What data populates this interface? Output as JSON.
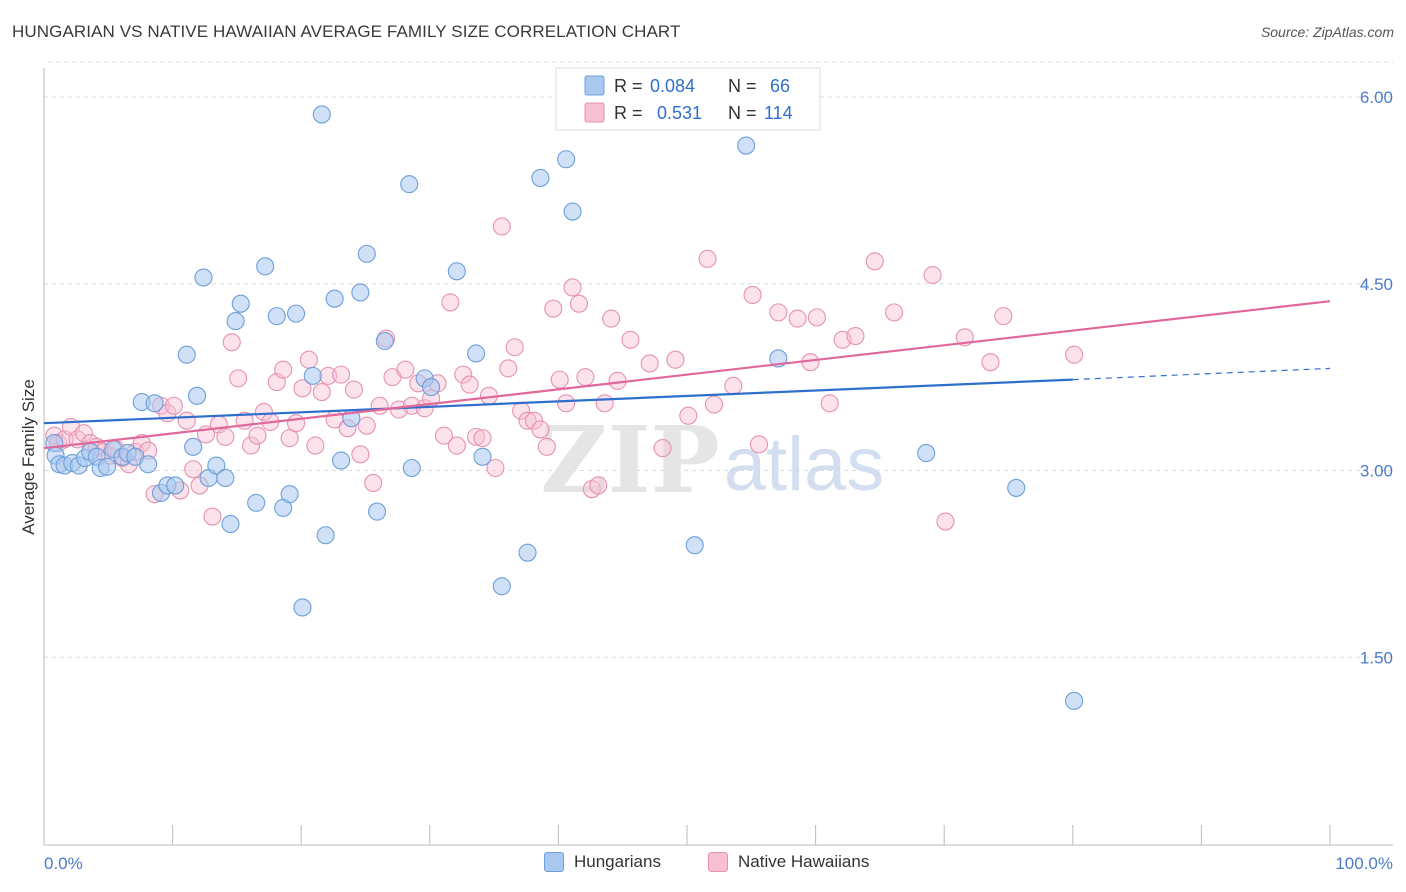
{
  "header": {
    "title": "HUNGARIAN VS NATIVE HAWAIIAN AVERAGE FAMILY SIZE CORRELATION CHART",
    "source": "Source: ZipAtlas.com"
  },
  "watermark": {
    "zip": "ZIP",
    "atlas": "atlas"
  },
  "colors": {
    "blue_fill": "#a9c8f0",
    "blue_stroke": "#6d9fd8",
    "blue_line": "#2f6fcc",
    "pink_fill": "#f6bfd3",
    "pink_stroke": "#e692b2",
    "pink_line": "#e0689a",
    "tick_label": "#4a7cc9",
    "grid": "#dcdcdc"
  },
  "legend_top": {
    "rows": [
      {
        "r_label": "R =",
        "r_value": "0.084",
        "n_label": "N =",
        "n_value": "66"
      },
      {
        "r_label": "R =",
        "r_value": "0.531",
        "n_label": "N =",
        "n_value": "114"
      }
    ]
  },
  "legend_bottom": {
    "items": [
      "Hungarians",
      "Native Hawaiians"
    ]
  },
  "chart_data": {
    "type": "scatter",
    "title": "HUNGARIAN VS NATIVE HAWAIIAN AVERAGE FAMILY SIZE CORRELATION CHART",
    "ylabel": "Average Family Size",
    "xlabel": "",
    "x_tick_labels": [
      "0.0%",
      "100.0%"
    ],
    "y_ticks": [
      1.5,
      3.0,
      4.5,
      6.0
    ],
    "y_tick_labels": [
      "1.50",
      "3.00",
      "4.50",
      "6.00"
    ],
    "xlim": [
      0,
      100
    ],
    "ylim": [
      0.0,
      6.3
    ],
    "grid": true,
    "legend_placement": "top-center",
    "series": [
      {
        "name": "Hungarians",
        "r": 0.084,
        "n": 66,
        "trend": {
          "x": [
            0,
            80
          ],
          "y": [
            3.38,
            3.73
          ],
          "dashed_extension": {
            "x": [
              80,
              100
            ],
            "y": [
              3.73,
              3.82
            ]
          }
        },
        "points": [
          [
            0.8,
            3.22
          ],
          [
            0.9,
            3.12
          ],
          [
            1.2,
            3.05
          ],
          [
            1.6,
            3.04
          ],
          [
            2.2,
            3.06
          ],
          [
            2.7,
            3.04
          ],
          [
            3.2,
            3.1
          ],
          [
            3.6,
            3.15
          ],
          [
            4.1,
            3.11
          ],
          [
            4.4,
            3.02
          ],
          [
            4.9,
            3.03
          ],
          [
            5.4,
            3.17
          ],
          [
            6.1,
            3.11
          ],
          [
            6.5,
            3.14
          ],
          [
            7.1,
            3.11
          ],
          [
            7.6,
            3.55
          ],
          [
            8.1,
            3.05
          ],
          [
            8.6,
            3.54
          ],
          [
            9.1,
            2.82
          ],
          [
            9.6,
            2.88
          ],
          [
            10.2,
            2.88
          ],
          [
            11.1,
            3.93
          ],
          [
            11.6,
            3.19
          ],
          [
            11.9,
            3.6
          ],
          [
            12.4,
            4.55
          ],
          [
            12.8,
            2.94
          ],
          [
            13.4,
            3.04
          ],
          [
            14.1,
            2.94
          ],
          [
            14.5,
            2.57
          ],
          [
            14.9,
            4.2
          ],
          [
            15.3,
            4.34
          ],
          [
            16.5,
            2.74
          ],
          [
            17.2,
            4.64
          ],
          [
            18.1,
            4.24
          ],
          [
            18.6,
            2.7
          ],
          [
            19.1,
            2.81
          ],
          [
            19.6,
            4.26
          ],
          [
            20.1,
            1.9
          ],
          [
            20.9,
            3.76
          ],
          [
            21.6,
            5.86
          ],
          [
            21.9,
            2.48
          ],
          [
            22.6,
            4.38
          ],
          [
            23.1,
            3.08
          ],
          [
            23.9,
            3.42
          ],
          [
            24.6,
            4.43
          ],
          [
            25.1,
            4.74
          ],
          [
            25.9,
            2.67
          ],
          [
            26.5,
            4.04
          ],
          [
            28.4,
            5.3
          ],
          [
            28.6,
            3.02
          ],
          [
            29.6,
            3.74
          ],
          [
            30.1,
            3.67
          ],
          [
            32.1,
            4.6
          ],
          [
            33.6,
            3.94
          ],
          [
            34.1,
            3.11
          ],
          [
            35.6,
            2.07
          ],
          [
            37.6,
            2.34
          ],
          [
            38.6,
            5.35
          ],
          [
            40.6,
            5.5
          ],
          [
            41.1,
            5.08
          ],
          [
            50.6,
            2.4
          ],
          [
            54.6,
            5.61
          ],
          [
            57.1,
            3.9
          ],
          [
            68.6,
            3.14
          ],
          [
            75.6,
            2.86
          ],
          [
            80.1,
            1.15
          ]
        ]
      },
      {
        "name": "Native Hawaiians",
        "r": 0.531,
        "n": 114,
        "trend": {
          "x": [
            0,
            100
          ],
          "y": [
            3.18,
            4.36
          ]
        },
        "points": [
          [
            0.8,
            3.28
          ],
          [
            1.1,
            3.22
          ],
          [
            1.6,
            3.25
          ],
          [
            2.1,
            3.35
          ],
          [
            2.6,
            3.25
          ],
          [
            3.1,
            3.3
          ],
          [
            3.6,
            3.22
          ],
          [
            4.1,
            3.19
          ],
          [
            4.6,
            3.15
          ],
          [
            5.1,
            3.12
          ],
          [
            5.6,
            3.17
          ],
          [
            6.1,
            3.1
          ],
          [
            6.6,
            3.05
          ],
          [
            7.1,
            3.15
          ],
          [
            7.6,
            3.22
          ],
          [
            8.1,
            3.16
          ],
          [
            8.6,
            2.81
          ],
          [
            9.1,
            3.52
          ],
          [
            9.6,
            3.46
          ],
          [
            10.1,
            3.52
          ],
          [
            10.6,
            2.84
          ],
          [
            11.1,
            3.4
          ],
          [
            11.6,
            3.01
          ],
          [
            12.1,
            2.88
          ],
          [
            12.6,
            3.29
          ],
          [
            13.1,
            2.63
          ],
          [
            13.6,
            3.37
          ],
          [
            14.1,
            3.27
          ],
          [
            14.6,
            4.03
          ],
          [
            15.1,
            3.74
          ],
          [
            15.6,
            3.4
          ],
          [
            16.1,
            3.2
          ],
          [
            16.6,
            3.28
          ],
          [
            17.1,
            3.47
          ],
          [
            17.6,
            3.39
          ],
          [
            18.1,
            3.71
          ],
          [
            18.6,
            3.81
          ],
          [
            19.1,
            3.26
          ],
          [
            19.6,
            3.38
          ],
          [
            20.1,
            3.66
          ],
          [
            20.6,
            3.89
          ],
          [
            21.1,
            3.2
          ],
          [
            21.6,
            3.63
          ],
          [
            22.1,
            3.76
          ],
          [
            22.6,
            3.41
          ],
          [
            23.1,
            3.77
          ],
          [
            23.6,
            3.34
          ],
          [
            24.1,
            3.65
          ],
          [
            24.6,
            3.13
          ],
          [
            25.1,
            3.36
          ],
          [
            25.6,
            2.9
          ],
          [
            26.1,
            3.52
          ],
          [
            26.6,
            4.06
          ],
          [
            27.1,
            3.75
          ],
          [
            27.6,
            3.49
          ],
          [
            28.1,
            3.81
          ],
          [
            28.6,
            3.52
          ],
          [
            29.1,
            3.7
          ],
          [
            29.6,
            3.5
          ],
          [
            30.1,
            3.58
          ],
          [
            30.6,
            3.7
          ],
          [
            31.1,
            3.28
          ],
          [
            31.6,
            4.35
          ],
          [
            32.1,
            3.2
          ],
          [
            32.6,
            3.77
          ],
          [
            33.1,
            3.69
          ],
          [
            33.6,
            3.27
          ],
          [
            34.1,
            3.26
          ],
          [
            34.6,
            3.6
          ],
          [
            35.1,
            3.02
          ],
          [
            35.6,
            4.96
          ],
          [
            36.1,
            3.82
          ],
          [
            36.6,
            3.99
          ],
          [
            37.1,
            3.48
          ],
          [
            37.6,
            3.4
          ],
          [
            38.1,
            3.4
          ],
          [
            38.6,
            3.33
          ],
          [
            39.1,
            3.19
          ],
          [
            39.6,
            4.3
          ],
          [
            40.1,
            3.73
          ],
          [
            40.6,
            3.54
          ],
          [
            41.1,
            4.47
          ],
          [
            41.6,
            4.34
          ],
          [
            42.1,
            3.75
          ],
          [
            42.6,
            2.85
          ],
          [
            43.1,
            2.88
          ],
          [
            43.6,
            3.54
          ],
          [
            44.1,
            4.22
          ],
          [
            44.6,
            3.72
          ],
          [
            45.6,
            4.05
          ],
          [
            47.1,
            3.86
          ],
          [
            48.1,
            3.18
          ],
          [
            49.1,
            3.89
          ],
          [
            50.1,
            3.44
          ],
          [
            51.6,
            4.7
          ],
          [
            52.1,
            3.53
          ],
          [
            53.6,
            3.68
          ],
          [
            55.1,
            4.41
          ],
          [
            55.6,
            3.21
          ],
          [
            57.1,
            4.27
          ],
          [
            58.6,
            4.22
          ],
          [
            59.6,
            3.87
          ],
          [
            60.1,
            4.23
          ],
          [
            61.1,
            3.54
          ],
          [
            62.1,
            4.05
          ],
          [
            63.1,
            4.08
          ],
          [
            64.6,
            4.68
          ],
          [
            66.1,
            4.27
          ],
          [
            69.1,
            4.57
          ],
          [
            70.1,
            2.59
          ],
          [
            71.6,
            4.07
          ],
          [
            73.6,
            3.87
          ],
          [
            74.6,
            4.24
          ],
          [
            80.1,
            3.93
          ]
        ]
      }
    ]
  }
}
